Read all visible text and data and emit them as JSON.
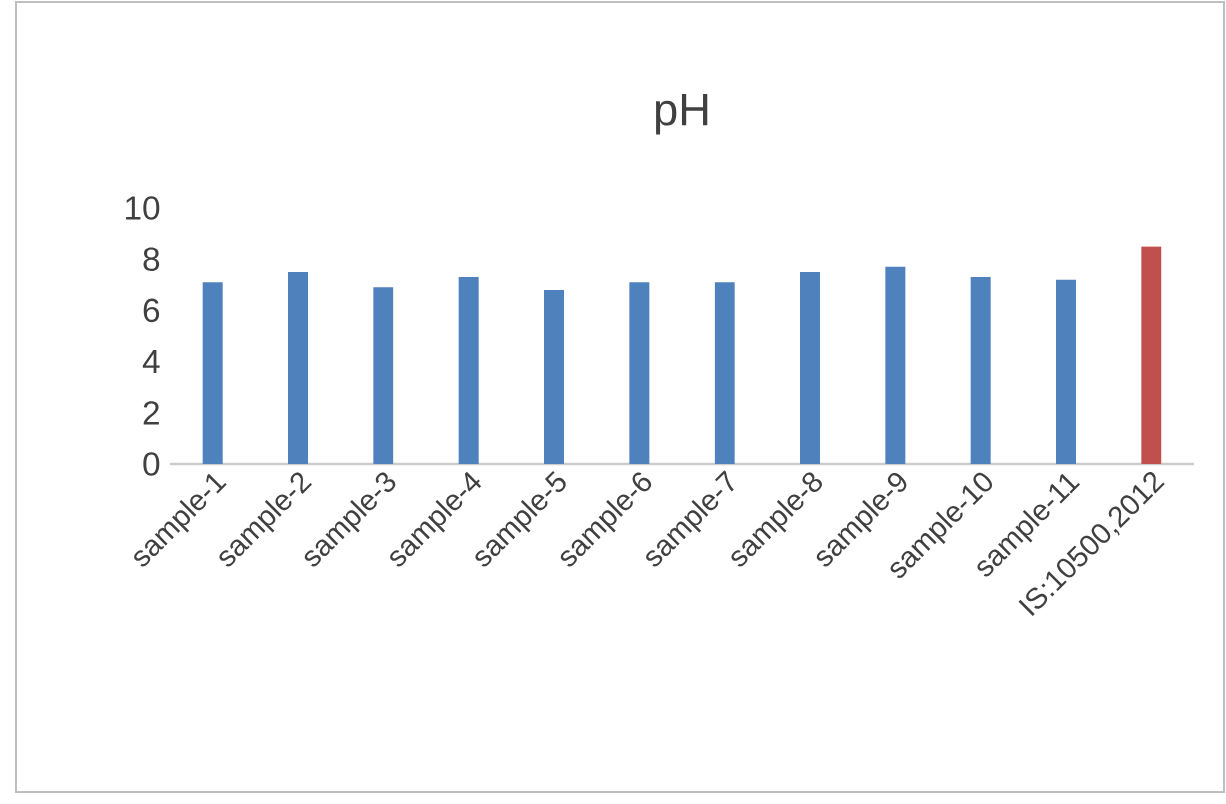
{
  "chart_data": {
    "type": "bar",
    "title": "pH",
    "categories": [
      "sample-1",
      "sample-2",
      "sample-3",
      "sample-4",
      "sample-5",
      "sample-6",
      "sample-7",
      "sample-8",
      "sample-9",
      "sample-10",
      "sample-11",
      "IS:10500,2012"
    ],
    "values": [
      7.1,
      7.5,
      6.9,
      7.3,
      6.8,
      7.1,
      7.1,
      7.5,
      7.7,
      7.3,
      7.2,
      8.5
    ],
    "colors": [
      "#4f81bd",
      "#4f81bd",
      "#4f81bd",
      "#4f81bd",
      "#4f81bd",
      "#4f81bd",
      "#4f81bd",
      "#4f81bd",
      "#4f81bd",
      "#4f81bd",
      "#4f81bd",
      "#c0504d"
    ],
    "ylim": [
      0,
      10
    ],
    "yticks": [
      0,
      2,
      4,
      6,
      8,
      10
    ]
  }
}
